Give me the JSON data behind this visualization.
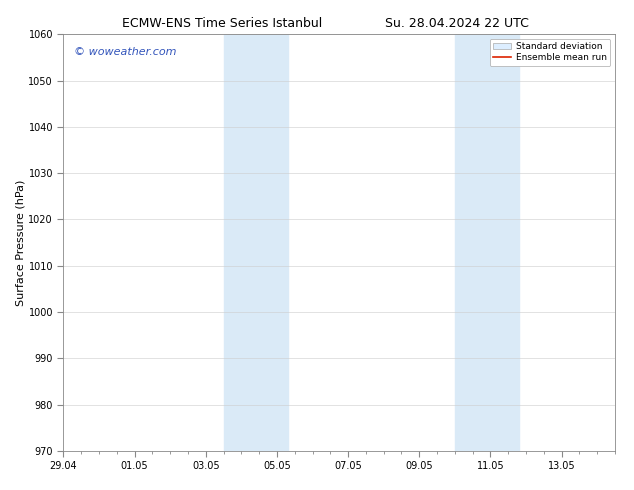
{
  "title_left": "ECMW-ENS Time Series Istanbul",
  "title_right": "Su. 28.04.2024 22 UTC",
  "ylabel": "Surface Pressure (hPa)",
  "ylim": [
    970,
    1060
  ],
  "yticks": [
    970,
    980,
    990,
    1000,
    1010,
    1020,
    1030,
    1040,
    1050,
    1060
  ],
  "xlabel_ticks": [
    "29.04",
    "01.05",
    "03.05",
    "05.05",
    "07.05",
    "09.05",
    "11.05",
    "13.05"
  ],
  "x_tick_positions": [
    0,
    2,
    4,
    6,
    8,
    10,
    12,
    14
  ],
  "shade_bands": [
    {
      "x_start": 4.5,
      "x_end": 6.3
    },
    {
      "x_start": 11.0,
      "x_end": 12.8
    }
  ],
  "shade_color": "#daeaf7",
  "grid_color": "#cccccc",
  "watermark_text": "© woweather.com",
  "watermark_color": "#3355bb",
  "legend_std_label": "Standard deviation",
  "legend_mean_label": "Ensemble mean run",
  "legend_std_color": "#ddeeff",
  "legend_std_edge": "#aaaaaa",
  "legend_mean_color": "#dd2200",
  "background_color": "#ffffff",
  "plot_bg_color": "#ffffff",
  "title_fontsize": 9,
  "axis_label_fontsize": 8,
  "tick_fontsize": 7,
  "watermark_fontsize": 8,
  "legend_fontsize": 6.5
}
